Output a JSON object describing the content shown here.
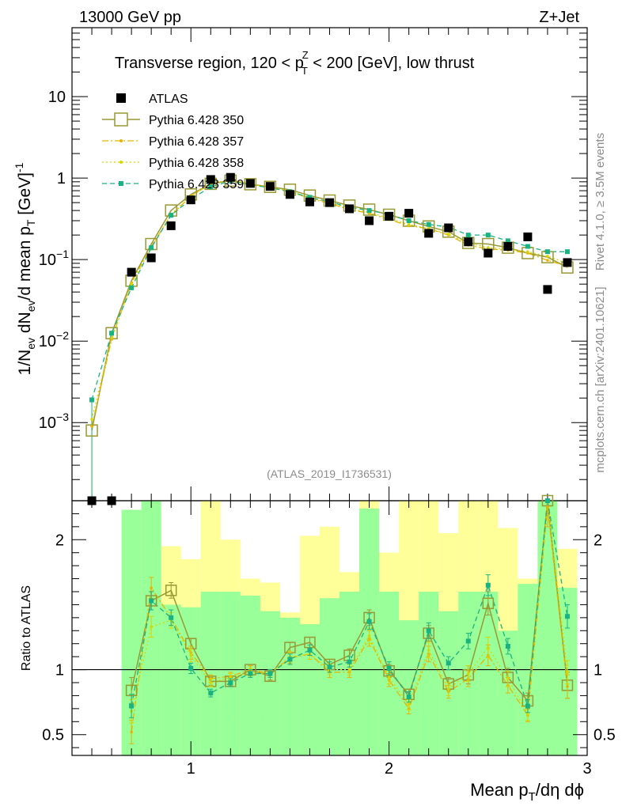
{
  "header": {
    "left": "13000 GeV pp",
    "right": "Z+Jet"
  },
  "chart_data": [
    {
      "type": "line",
      "title_parts": [
        "Transverse region, 120 < p",
        "T",
        "Z",
        " < 200 [GeV], low thrust"
      ],
      "ylabel_parts": [
        "1/N",
        "ev",
        " dN",
        "ev",
        "/d mean p",
        "T",
        " [GeV]",
        "-1"
      ],
      "xlabel_parts": [
        "Mean p",
        "T",
        "/dη dϕ"
      ],
      "yscale": "log",
      "xlim": [
        0.4,
        3.0
      ],
      "ylim": [
        0.00011,
        70
      ],
      "yticks": [
        {
          "value": 0.001,
          "base": "10",
          "exp": "−3"
        },
        {
          "value": 0.01,
          "base": "10",
          "exp": "−2"
        },
        {
          "value": 0.1,
          "base": "10",
          "exp": "−1"
        },
        {
          "value": 1,
          "base": "1",
          "exp": ""
        },
        {
          "value": 10,
          "base": "10",
          "exp": ""
        }
      ],
      "xticks": [
        {
          "value": 1,
          "label": "1"
        },
        {
          "value": 2,
          "label": "2"
        },
        {
          "value": 3,
          "label": "3"
        }
      ],
      "x": [
        0.5,
        0.6,
        0.7,
        0.8,
        0.9,
        1.0,
        1.1,
        1.2,
        1.3,
        1.4,
        1.5,
        1.6,
        1.7,
        1.8,
        1.9,
        2.0,
        2.1,
        2.2,
        2.3,
        2.4,
        2.5,
        2.6,
        2.7,
        2.8,
        2.9
      ],
      "series": [
        {
          "name": "ATLAS",
          "color": "#000000",
          "style": "data",
          "values": [
            0.00011,
            0.00011,
            0.07,
            0.105,
            0.26,
            0.54,
            0.96,
            1.02,
            0.86,
            0.79,
            0.63,
            0.51,
            0.5,
            0.42,
            0.3,
            0.34,
            0.37,
            0.21,
            0.245,
            0.165,
            0.12,
            0.145,
            0.19,
            0.043,
            0.092
          ]
        },
        {
          "name": "Pythia 6.428 350",
          "color": "#999933",
          "style": "open-square-solid",
          "values": [
            0.0008,
            0.0125,
            0.055,
            0.155,
            0.4,
            0.63,
            0.85,
            0.93,
            0.84,
            0.78,
            0.72,
            0.61,
            0.53,
            0.46,
            0.41,
            0.355,
            0.3,
            0.255,
            0.22,
            0.16,
            0.155,
            0.14,
            0.12,
            0.107,
            0.08
          ]
        },
        {
          "name": "Pythia 6.428 357",
          "color": "#e6b400",
          "style": "dash-dot",
          "values": [
            0.0009,
            0.0105,
            0.052,
            0.145,
            0.35,
            0.6,
            0.85,
            0.95,
            0.85,
            0.77,
            0.69,
            0.56,
            0.49,
            0.41,
            0.37,
            0.31,
            0.26,
            0.24,
            0.2,
            0.15,
            0.135,
            0.13,
            0.12,
            0.098,
            0.083
          ]
        },
        {
          "name": "Pythia 6.428 358",
          "color": "#d7d700",
          "style": "dotted",
          "values": [
            0.0011,
            0.011,
            0.05,
            0.14,
            0.36,
            0.6,
            0.86,
            0.95,
            0.84,
            0.76,
            0.7,
            0.57,
            0.5,
            0.42,
            0.38,
            0.32,
            0.27,
            0.24,
            0.205,
            0.16,
            0.14,
            0.135,
            0.125,
            0.11,
            0.09
          ]
        },
        {
          "name": "Pythia 6.428 359",
          "color": "#19b382",
          "style": "dashed-filled-square",
          "values": [
            0.0019,
            0.0125,
            0.045,
            0.14,
            0.35,
            0.55,
            0.78,
            0.92,
            0.83,
            0.76,
            0.68,
            0.58,
            0.51,
            0.44,
            0.4,
            0.36,
            0.3,
            0.27,
            0.25,
            0.2,
            0.2,
            0.17,
            0.145,
            0.125,
            0.125
          ]
        }
      ],
      "annotation": "(ATLAS_2019_I1736531)"
    },
    {
      "type": "line",
      "ylabel": "Ratio to ATLAS",
      "xlim": [
        0.4,
        3.0
      ],
      "ylim": [
        0.34,
        2.3
      ],
      "yticks": [
        {
          "value": 0.5,
          "label": "0.5"
        },
        {
          "value": 1,
          "label": "1"
        },
        {
          "value": 2,
          "label": "2"
        }
      ],
      "xticks": [
        {
          "value": 1,
          "label": "1"
        },
        {
          "value": 2,
          "label": "2"
        },
        {
          "value": 3,
          "label": "3"
        }
      ],
      "reference_line": 1,
      "x": [
        0.7,
        0.8,
        0.9,
        1.0,
        1.1,
        1.2,
        1.3,
        1.4,
        1.5,
        1.6,
        1.7,
        1.8,
        1.9,
        2.0,
        2.1,
        2.2,
        2.3,
        2.4,
        2.5,
        2.6,
        2.7,
        2.8,
        2.9
      ],
      "bands": {
        "x_low": [
          0.65,
          0.75,
          0.85,
          0.95,
          1.05,
          1.15,
          1.25,
          1.35,
          1.45,
          1.55,
          1.65,
          1.75,
          1.85,
          1.95,
          2.05,
          2.15,
          2.25,
          2.35,
          2.45,
          2.55,
          2.65,
          2.75,
          2.85
        ],
        "x_high": [
          0.75,
          0.85,
          0.95,
          1.05,
          1.15,
          1.25,
          1.35,
          1.45,
          1.55,
          1.65,
          1.75,
          1.85,
          1.95,
          2.05,
          2.15,
          2.25,
          2.35,
          2.45,
          2.55,
          2.65,
          2.75,
          2.85,
          2.95
        ],
        "yellow_low": [
          0.34,
          0.34,
          0.34,
          0.7,
          0.69,
          0.34,
          0.63,
          0.34,
          0.34,
          0.34,
          0.45,
          0.4,
          0.34,
          0.34,
          0.34,
          0.34,
          0.34,
          0.53,
          0.34,
          0.34,
          0.52,
          0.34,
          0.54
        ],
        "yellow_high": [
          2.23,
          2.3,
          1.95,
          1.85,
          2.3,
          2.0,
          1.7,
          1.67,
          1.44,
          2.03,
          2.1,
          1.75,
          2.3,
          1.9,
          2.3,
          2.3,
          2.05,
          2.3,
          2.3,
          2.09,
          1.7,
          2.3,
          1.93
        ],
        "green_low": [
          0.34,
          0.34,
          0.34,
          0.34,
          0.34,
          0.34,
          0.34,
          0.34,
          0.34,
          0.34,
          0.34,
          0.34,
          0.34,
          0.34,
          0.34,
          0.34,
          0.34,
          0.34,
          0.34,
          0.34,
          0.34,
          0.34,
          0.34
        ],
        "green_high": [
          2.23,
          2.3,
          1.5,
          1.48,
          1.6,
          1.6,
          1.57,
          1.45,
          1.4,
          1.35,
          1.55,
          1.6,
          2.24,
          1.6,
          1.38,
          1.6,
          1.45,
          1.6,
          1.6,
          1.3,
          1.66,
          2.3,
          1.63
        ]
      },
      "series": [
        {
          "name": "Pythia 6.428 350",
          "color": "#999933",
          "values": [
            0.84,
            1.53,
            1.61,
            1.2,
            0.91,
            0.91,
            1.0,
            0.95,
            1.17,
            1.21,
            1.04,
            1.11,
            1.4,
            0.99,
            0.81,
            1.28,
            0.89,
            0.96,
            1.51,
            0.94,
            0.76,
            2.35,
            0.88
          ],
          "errors": [
            0.1,
            0.07,
            0.06,
            0.04,
            0.03,
            0.03,
            0.03,
            0.03,
            0.04,
            0.04,
            0.04,
            0.05,
            0.06,
            0.05,
            0.04,
            0.06,
            0.05,
            0.07,
            0.09,
            0.07,
            0.06,
            0.15,
            0.1
          ]
        },
        {
          "name": "Pythia 6.428 357",
          "color": "#e6b400",
          "values": [
            0.52,
            1.63,
            1.4,
            1.13,
            0.93,
            0.95,
            1.0,
            0.97,
            1.09,
            1.12,
            0.98,
            0.98,
            1.24,
            0.92,
            0.7,
            1.12,
            0.83,
            0.93,
            1.11,
            0.88,
            0.65,
            2.25,
            0.87
          ],
          "errors": [
            0.09,
            0.08,
            0.06,
            0.05,
            0.03,
            0.03,
            0.03,
            0.03,
            0.04,
            0.04,
            0.04,
            0.04,
            0.06,
            0.05,
            0.04,
            0.06,
            0.05,
            0.06,
            0.08,
            0.06,
            0.05,
            0.15,
            0.09
          ]
        },
        {
          "name": "Pythia 6.428 358",
          "color": "#d7d700",
          "values": [
            0.68,
            1.33,
            1.38,
            1.11,
            0.9,
            0.94,
            0.98,
            0.97,
            1.1,
            1.12,
            1.0,
            1.0,
            1.26,
            0.94,
            0.73,
            1.15,
            0.85,
            0.97,
            1.17,
            0.93,
            0.66,
            2.56,
            0.98
          ],
          "errors": [
            0.09,
            0.08,
            0.06,
            0.05,
            0.03,
            0.03,
            0.03,
            0.03,
            0.04,
            0.04,
            0.04,
            0.04,
            0.06,
            0.05,
            0.04,
            0.06,
            0.05,
            0.06,
            0.08,
            0.06,
            0.05,
            0.15,
            0.09
          ]
        },
        {
          "name": "Pythia 6.428 359",
          "color": "#19b382",
          "values": [
            0.72,
            1.53,
            1.4,
            1.01,
            0.82,
            0.9,
            0.97,
            0.97,
            1.08,
            1.15,
            1.02,
            1.06,
            1.37,
            1.01,
            0.79,
            1.3,
            1.05,
            1.22,
            1.65,
            1.18,
            0.72,
            2.5,
            1.41
          ],
          "errors": [
            0.09,
            0.07,
            0.06,
            0.04,
            0.03,
            0.03,
            0.03,
            0.03,
            0.04,
            0.04,
            0.04,
            0.04,
            0.06,
            0.05,
            0.04,
            0.06,
            0.05,
            0.06,
            0.08,
            0.06,
            0.05,
            0.15,
            0.09
          ]
        }
      ]
    }
  ],
  "side_labels": {
    "rivet_version": "Rivet 4.1.0, ≥ 3.5M events",
    "source": "mcplots.cern.ch [arXiv:2401.10621]"
  }
}
